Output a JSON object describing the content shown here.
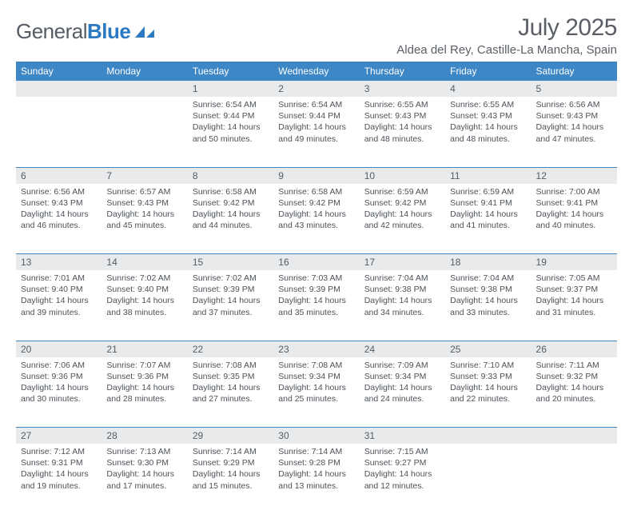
{
  "brand": {
    "part1": "General",
    "part2": "Blue"
  },
  "title": "July 2025",
  "location": "Aldea del Rey, Castille-La Mancha, Spain",
  "colors": {
    "header_bg": "#3d87c7",
    "header_text": "#ffffff",
    "daynum_bg": "#e9eaeb",
    "text": "#4c5258",
    "separator": "#3d87c7"
  },
  "dayNames": [
    "Sunday",
    "Monday",
    "Tuesday",
    "Wednesday",
    "Thursday",
    "Friday",
    "Saturday"
  ],
  "weeks": [
    [
      null,
      null,
      {
        "n": "1",
        "sr": "6:54 AM",
        "ss": "9:44 PM",
        "dl": "14 hours and 50 minutes."
      },
      {
        "n": "2",
        "sr": "6:54 AM",
        "ss": "9:44 PM",
        "dl": "14 hours and 49 minutes."
      },
      {
        "n": "3",
        "sr": "6:55 AM",
        "ss": "9:43 PM",
        "dl": "14 hours and 48 minutes."
      },
      {
        "n": "4",
        "sr": "6:55 AM",
        "ss": "9:43 PM",
        "dl": "14 hours and 48 minutes."
      },
      {
        "n": "5",
        "sr": "6:56 AM",
        "ss": "9:43 PM",
        "dl": "14 hours and 47 minutes."
      }
    ],
    [
      {
        "n": "6",
        "sr": "6:56 AM",
        "ss": "9:43 PM",
        "dl": "14 hours and 46 minutes."
      },
      {
        "n": "7",
        "sr": "6:57 AM",
        "ss": "9:43 PM",
        "dl": "14 hours and 45 minutes."
      },
      {
        "n": "8",
        "sr": "6:58 AM",
        "ss": "9:42 PM",
        "dl": "14 hours and 44 minutes."
      },
      {
        "n": "9",
        "sr": "6:58 AM",
        "ss": "9:42 PM",
        "dl": "14 hours and 43 minutes."
      },
      {
        "n": "10",
        "sr": "6:59 AM",
        "ss": "9:42 PM",
        "dl": "14 hours and 42 minutes."
      },
      {
        "n": "11",
        "sr": "6:59 AM",
        "ss": "9:41 PM",
        "dl": "14 hours and 41 minutes."
      },
      {
        "n": "12",
        "sr": "7:00 AM",
        "ss": "9:41 PM",
        "dl": "14 hours and 40 minutes."
      }
    ],
    [
      {
        "n": "13",
        "sr": "7:01 AM",
        "ss": "9:40 PM",
        "dl": "14 hours and 39 minutes."
      },
      {
        "n": "14",
        "sr": "7:02 AM",
        "ss": "9:40 PM",
        "dl": "14 hours and 38 minutes."
      },
      {
        "n": "15",
        "sr": "7:02 AM",
        "ss": "9:39 PM",
        "dl": "14 hours and 37 minutes."
      },
      {
        "n": "16",
        "sr": "7:03 AM",
        "ss": "9:39 PM",
        "dl": "14 hours and 35 minutes."
      },
      {
        "n": "17",
        "sr": "7:04 AM",
        "ss": "9:38 PM",
        "dl": "14 hours and 34 minutes."
      },
      {
        "n": "18",
        "sr": "7:04 AM",
        "ss": "9:38 PM",
        "dl": "14 hours and 33 minutes."
      },
      {
        "n": "19",
        "sr": "7:05 AM",
        "ss": "9:37 PM",
        "dl": "14 hours and 31 minutes."
      }
    ],
    [
      {
        "n": "20",
        "sr": "7:06 AM",
        "ss": "9:36 PM",
        "dl": "14 hours and 30 minutes."
      },
      {
        "n": "21",
        "sr": "7:07 AM",
        "ss": "9:36 PM",
        "dl": "14 hours and 28 minutes."
      },
      {
        "n": "22",
        "sr": "7:08 AM",
        "ss": "9:35 PM",
        "dl": "14 hours and 27 minutes."
      },
      {
        "n": "23",
        "sr": "7:08 AM",
        "ss": "9:34 PM",
        "dl": "14 hours and 25 minutes."
      },
      {
        "n": "24",
        "sr": "7:09 AM",
        "ss": "9:34 PM",
        "dl": "14 hours and 24 minutes."
      },
      {
        "n": "25",
        "sr": "7:10 AM",
        "ss": "9:33 PM",
        "dl": "14 hours and 22 minutes."
      },
      {
        "n": "26",
        "sr": "7:11 AM",
        "ss": "9:32 PM",
        "dl": "14 hours and 20 minutes."
      }
    ],
    [
      {
        "n": "27",
        "sr": "7:12 AM",
        "ss": "9:31 PM",
        "dl": "14 hours and 19 minutes."
      },
      {
        "n": "28",
        "sr": "7:13 AM",
        "ss": "9:30 PM",
        "dl": "14 hours and 17 minutes."
      },
      {
        "n": "29",
        "sr": "7:14 AM",
        "ss": "9:29 PM",
        "dl": "14 hours and 15 minutes."
      },
      {
        "n": "30",
        "sr": "7:14 AM",
        "ss": "9:28 PM",
        "dl": "14 hours and 13 minutes."
      },
      {
        "n": "31",
        "sr": "7:15 AM",
        "ss": "9:27 PM",
        "dl": "14 hours and 12 minutes."
      },
      null,
      null
    ]
  ],
  "labels": {
    "sunrise": "Sunrise:",
    "sunset": "Sunset:",
    "daylight": "Daylight:"
  }
}
